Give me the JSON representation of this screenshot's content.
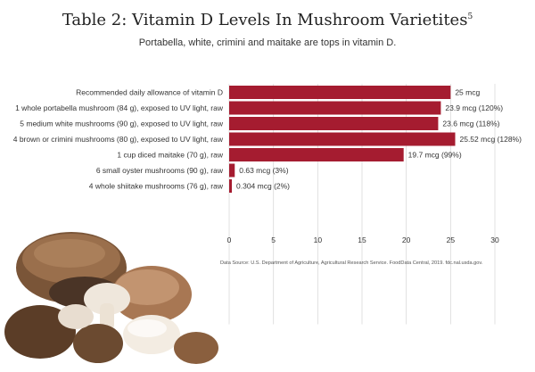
{
  "title": "Table 2: Vitamin D Levels In Mushroom Varietites",
  "title_footnote": "5",
  "subtitle": "Portabella, white, crimini and maitake are tops in vitamin D.",
  "source": "Data Source: U.S. Department of Agriculture, Agricultural Research Service. FoodData Central, 2019. fdc.nal.usda.gov.",
  "image": {
    "icon": "mushrooms-photo"
  },
  "colors": {
    "bar": "#a51c30",
    "grid": "#d9d9d9"
  },
  "chart_data": {
    "type": "bar",
    "orientation": "horizontal",
    "categories": [
      "Recommended daily allowance of vitamin D",
      "1 whole portabella mushroom (84 g), exposed to UV light, raw",
      "5 medium white mushrooms (90 g), exposed to UV light, raw",
      "4 brown or crimini mushrooms (80 g), exposed to UV light, raw",
      "1 cup diced maitake (70 g), raw",
      "6 small oyster mushrooms (90 g), raw",
      "4 whole shiitake mushrooms (76 g), raw"
    ],
    "values": [
      25,
      23.9,
      23.6,
      25.52,
      19.7,
      0.63,
      0.304
    ],
    "data_labels": [
      "25 mcg",
      "23.9 mcg (120%)",
      "23.6 mcg (118%)",
      "25.52 mcg (128%)",
      "19.7 mcg (99%)",
      "0.63 mcg (3%)",
      "0.304 mcg (2%)"
    ],
    "xlim": [
      0,
      30
    ],
    "xticks": [
      0,
      5,
      10,
      15,
      20,
      25,
      30
    ],
    "grid": true,
    "legend": "none",
    "xlabel": "",
    "ylabel": ""
  }
}
